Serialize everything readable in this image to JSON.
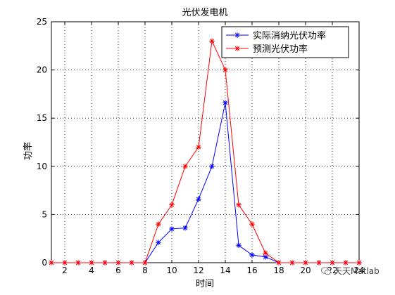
{
  "chart_data": {
    "type": "line",
    "title": "光伏发电机",
    "xlabel": "时间",
    "ylabel": "功率",
    "xlim": [
      1,
      24
    ],
    "ylim": [
      0,
      25
    ],
    "x_ticks": [
      2,
      4,
      6,
      8,
      10,
      12,
      14,
      16,
      18,
      20,
      22,
      24
    ],
    "y_ticks": [
      0,
      5,
      10,
      15,
      20,
      25
    ],
    "grid": true,
    "grid_style": "dotted",
    "legend_position": "top-right",
    "x": [
      1,
      2,
      3,
      4,
      5,
      6,
      7,
      8,
      9,
      10,
      11,
      12,
      13,
      14,
      15,
      16,
      17,
      18,
      19,
      20,
      21,
      22,
      23,
      24
    ],
    "series": [
      {
        "name": "实际消纳光伏功率",
        "color": "#0000ff",
        "marker": "*",
        "values": [
          0,
          0,
          0,
          0,
          0,
          0,
          0,
          0,
          2.1,
          3.5,
          3.6,
          6.6,
          10,
          16.6,
          1.8,
          0.8,
          0.6,
          0,
          0,
          0,
          0,
          0,
          0,
          0
        ]
      },
      {
        "name": "预测光伏功率",
        "color": "#ff0000",
        "marker": "*",
        "values": [
          0,
          0,
          0,
          0,
          0,
          0,
          0,
          0,
          4,
          6,
          10,
          12,
          23,
          20,
          6,
          4,
          1,
          0,
          0,
          0,
          0,
          0,
          0,
          0
        ]
      }
    ]
  },
  "watermark": {
    "text": "天天Matlab",
    "icon": "wechat-icon"
  }
}
